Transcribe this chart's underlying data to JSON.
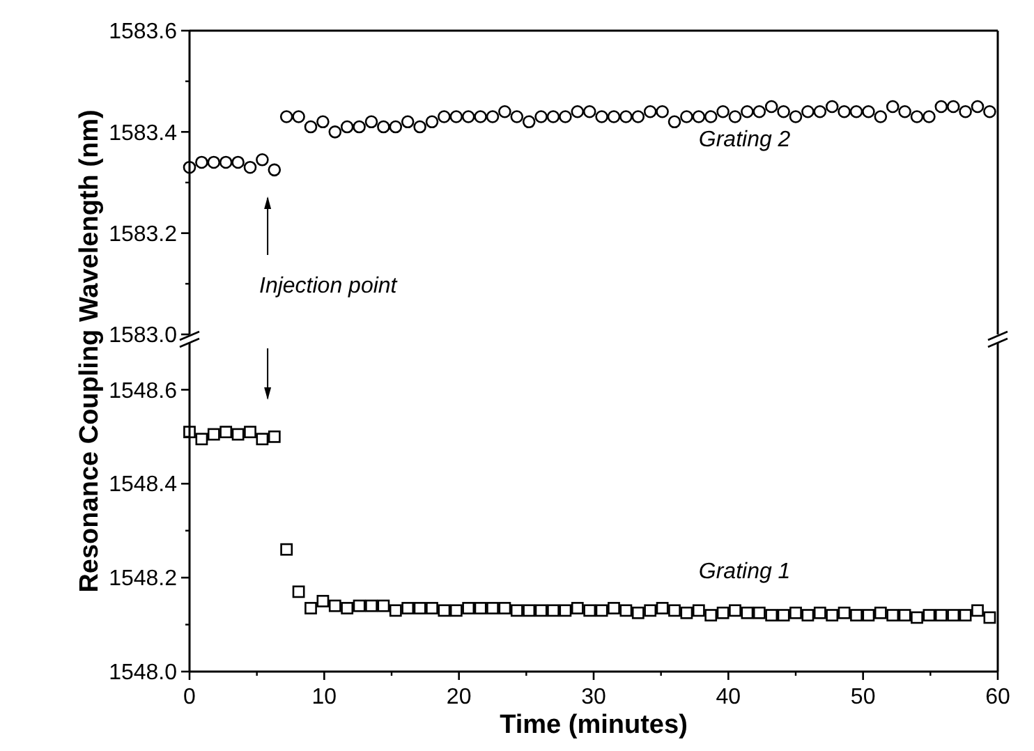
{
  "chart_data": [
    {
      "type": "scatter",
      "ylabel": "Resonance Coupling Wavelength (nm)",
      "xlim": [
        0,
        60
      ],
      "xticks": [
        0,
        10,
        20,
        30,
        40,
        50,
        60
      ],
      "ylim": [
        1583.0,
        1583.6
      ],
      "yticks": [
        {
          "value": 1583,
          "label": "1583.0"
        },
        1583.2,
        1583.4,
        1583.6
      ],
      "tick_labels": "y",
      "marker": "circle",
      "grid": false,
      "annotations": [
        "Injection point"
      ],
      "series": [
        {
          "name": "Grating 2",
          "color": "#000000",
          "x": [
            0,
            0.9,
            1.8,
            2.7,
            3.6,
            4.5,
            5.4,
            6.3,
            7.2,
            8.1,
            9,
            9.9,
            10.8,
            11.7,
            12.6,
            13.5,
            14.4,
            15.3,
            16.2,
            17.1,
            18,
            18.9,
            19.8,
            20.7,
            21.6,
            22.5,
            23.4,
            24.3,
            25.2,
            26.1,
            27,
            27.9,
            28.8,
            29.7,
            30.6,
            31.5,
            32.4,
            33.3,
            34.2,
            35.1,
            36,
            36.9,
            37.8,
            38.7,
            39.6,
            40.5,
            41.4,
            42.3,
            43.2,
            44.1,
            45,
            45.9,
            46.8,
            47.7,
            48.6,
            49.5,
            50.4,
            51.3,
            52.2,
            53.1,
            54,
            54.9,
            55.8,
            56.7,
            57.6,
            58.5,
            59.4
          ],
          "values": [
            1583.33,
            1583.34,
            1583.34,
            1583.34,
            1583.34,
            1583.33,
            1583.345,
            1583.325,
            1583.43,
            1583.43,
            1583.41,
            1583.42,
            1583.4,
            1583.41,
            1583.41,
            1583.42,
            1583.41,
            1583.41,
            1583.42,
            1583.41,
            1583.42,
            1583.43,
            1583.43,
            1583.43,
            1583.43,
            1583.43,
            1583.44,
            1583.43,
            1583.42,
            1583.43,
            1583.43,
            1583.43,
            1583.44,
            1583.44,
            1583.43,
            1583.43,
            1583.43,
            1583.43,
            1583.44,
            1583.44,
            1583.42,
            1583.43,
            1583.43,
            1583.43,
            1583.44,
            1583.43,
            1583.44,
            1583.44,
            1583.45,
            1583.44,
            1583.43,
            1583.44,
            1583.44,
            1583.45,
            1583.44,
            1583.44,
            1583.44,
            1583.43,
            1583.45,
            1583.44,
            1583.43,
            1583.43,
            1583.45,
            1583.45,
            1583.44,
            1583.45,
            1583.44
          ]
        }
      ]
    },
    {
      "type": "scatter",
      "xlabel": "Time (minutes)",
      "xlim": [
        0,
        60
      ],
      "xticks": [
        0,
        10,
        20,
        30,
        40,
        50,
        60
      ],
      "ylim": [
        1548.0,
        1548.7
      ],
      "yticks": [
        {
          "value": 1548,
          "label": "1548.0"
        },
        1548.2,
        1548.4,
        1548.6
      ],
      "marker": "square",
      "grid": false,
      "series": [
        {
          "name": "Grating 1",
          "color": "#000000",
          "x": [
            0,
            0.9,
            1.8,
            2.7,
            3.6,
            4.5,
            5.4,
            6.3,
            7.2,
            8.1,
            9,
            9.9,
            10.8,
            11.7,
            12.6,
            13.5,
            14.4,
            15.3,
            16.2,
            17.1,
            18,
            18.9,
            19.8,
            20.7,
            21.6,
            22.5,
            23.4,
            24.3,
            25.2,
            26.1,
            27,
            27.9,
            28.8,
            29.7,
            30.6,
            31.5,
            32.4,
            33.3,
            34.2,
            35.1,
            36,
            36.9,
            37.8,
            38.7,
            39.6,
            40.5,
            41.4,
            42.3,
            43.2,
            44.1,
            45,
            45.9,
            46.8,
            47.7,
            48.6,
            49.5,
            50.4,
            51.3,
            52.2,
            53.1,
            54,
            54.9,
            55.8,
            56.7,
            57.6,
            58.5,
            59.4
          ],
          "values": [
            1548.51,
            1548.495,
            1548.505,
            1548.51,
            1548.505,
            1548.51,
            1548.495,
            1548.5,
            1548.26,
            1548.17,
            1548.135,
            1548.15,
            1548.14,
            1548.135,
            1548.14,
            1548.14,
            1548.14,
            1548.13,
            1548.135,
            1548.135,
            1548.135,
            1548.13,
            1548.13,
            1548.135,
            1548.135,
            1548.135,
            1548.135,
            1548.13,
            1548.13,
            1548.13,
            1548.13,
            1548.13,
            1548.135,
            1548.13,
            1548.13,
            1548.135,
            1548.13,
            1548.125,
            1548.13,
            1548.135,
            1548.13,
            1548.125,
            1548.13,
            1548.12,
            1548.125,
            1548.13,
            1548.125,
            1548.125,
            1548.12,
            1548.12,
            1548.125,
            1548.12,
            1548.125,
            1548.12,
            1548.125,
            1548.12,
            1548.12,
            1548.125,
            1548.12,
            1548.12,
            1548.115,
            1548.12,
            1548.12,
            1548.12,
            1548.12,
            1548.13,
            1548.115
          ]
        }
      ]
    }
  ]
}
